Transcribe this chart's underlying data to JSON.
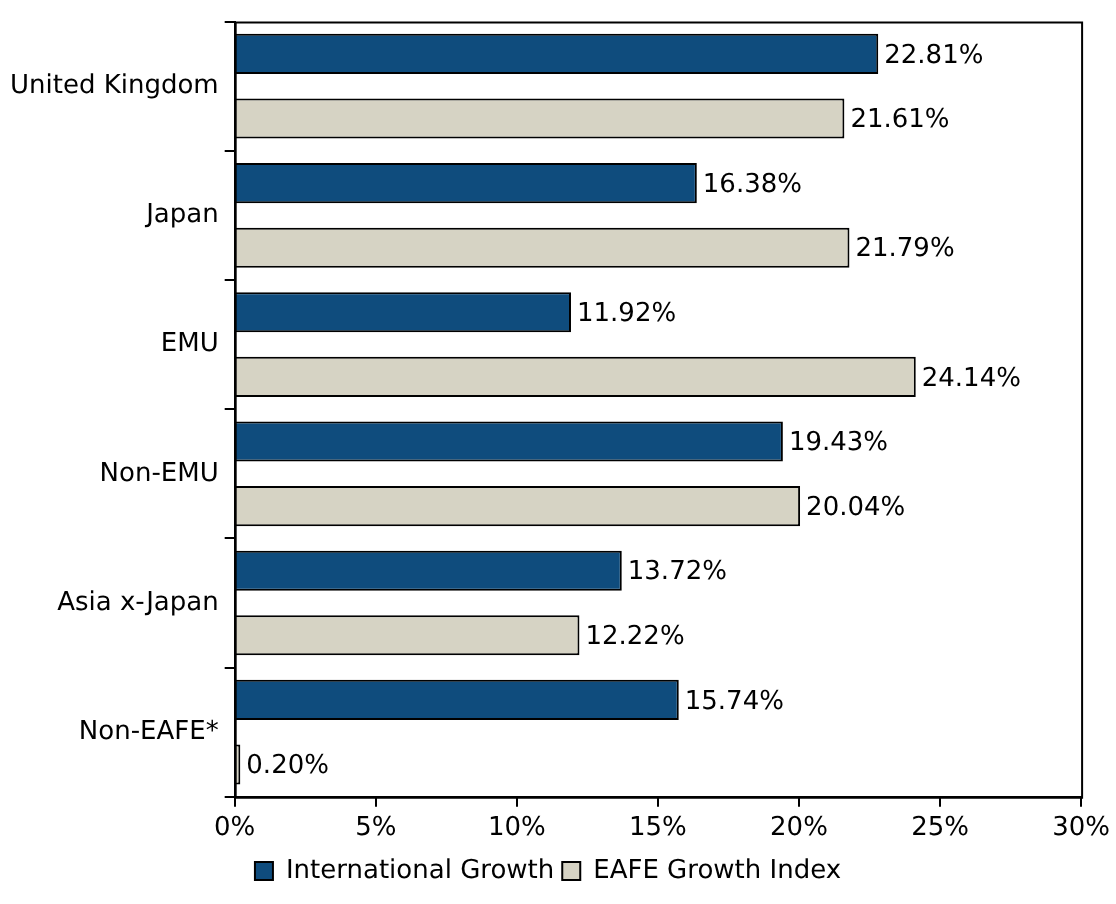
{
  "chart_data": {
    "type": "bar",
    "orientation": "horizontal",
    "categories": [
      "United Kingdom",
      "Japan",
      "EMU",
      "Non-EMU",
      "Asia x-Japan",
      "Non-EAFE*"
    ],
    "series": [
      {
        "name": "International Growth",
        "color": "#0f4c7d",
        "values": [
          22.81,
          16.38,
          11.92,
          19.43,
          13.72,
          15.74
        ],
        "value_labels": [
          "22.81%",
          "16.38%",
          "11.92%",
          "19.43%",
          "13.72%",
          "15.74%"
        ]
      },
      {
        "name": "EAFE Growth Index",
        "color": "#d6d3c4",
        "values": [
          21.61,
          21.79,
          24.14,
          20.04,
          12.22,
          0.2
        ],
        "value_labels": [
          "21.61%",
          "21.79%",
          "24.14%",
          "20.04%",
          "12.22%",
          "0.20%"
        ]
      }
    ],
    "xlim": [
      0,
      30
    ],
    "xticks": [
      {
        "value": 0,
        "label": "0%"
      },
      {
        "value": 5,
        "label": "5%"
      },
      {
        "value": 10,
        "label": "10%"
      },
      {
        "value": 15,
        "label": "15%"
      },
      {
        "value": 20,
        "label": "20%"
      },
      {
        "value": 25,
        "label": "25%"
      },
      {
        "value": 30,
        "label": "30%"
      }
    ],
    "grid": false,
    "legend": "bottom"
  }
}
